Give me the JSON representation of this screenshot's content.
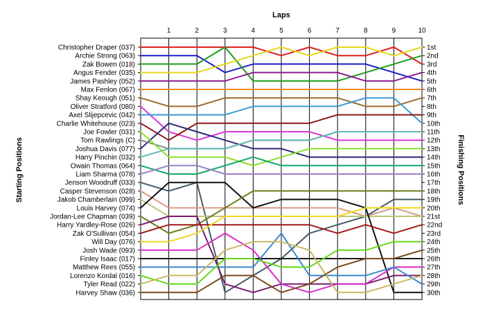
{
  "chart_data": {
    "type": "line",
    "title": "",
    "xlabel": "Laps",
    "ylabel_left": "Starting Positions",
    "ylabel_right": "Finishing Positions",
    "x": [
      0,
      1,
      2,
      3,
      4,
      5,
      6,
      7,
      8,
      9,
      10
    ],
    "x_tick_labels": [
      "1",
      "2",
      "3",
      "4",
      "5",
      "6",
      "7",
      "8",
      "9",
      "10"
    ],
    "ylim": [
      1,
      30
    ],
    "y_inverted": true,
    "grid": {
      "vertical": true,
      "horizontal": false
    },
    "finishing_position_labels": [
      "1st",
      "2nd",
      "3rd",
      "4th",
      "5th",
      "6th",
      "7th",
      "8th",
      "9th",
      "10th",
      "11th",
      "12th",
      "13th",
      "14th",
      "15th",
      "16th",
      "17th",
      "18th",
      "19th",
      "20th",
      "21st",
      "22nd",
      "23rd",
      "24th",
      "25th",
      "26th",
      "27th",
      "28th",
      "29th",
      "30th"
    ],
    "series": [
      {
        "name": "Christopher Draper (037)",
        "color": "#dd1f1f",
        "positions": [
          1,
          1,
          1,
          1,
          1,
          2,
          1,
          2,
          2,
          1,
          3
        ]
      },
      {
        "name": "Archie Strong (063)",
        "color": "#1c1ccc",
        "positions": [
          2,
          2,
          2,
          4,
          3,
          3,
          3,
          3,
          3,
          4,
          5
        ]
      },
      {
        "name": "Zak Bowen (018)",
        "color": "#1f9b1f",
        "positions": [
          3,
          3,
          3,
          1,
          5,
          5,
          5,
          5,
          4,
          3,
          2
        ]
      },
      {
        "name": "Angus Fender (035)",
        "color": "#e8d81a",
        "positions": [
          4,
          4,
          4,
          3,
          2,
          1,
          2,
          1,
          1,
          2,
          1
        ]
      },
      {
        "name": "James Pashley (052)",
        "color": "#8e1a8e",
        "positions": [
          5,
          5,
          5,
          5,
          4,
          4,
          4,
          4,
          5,
          5,
          4
        ]
      },
      {
        "name": "Max Fenlon (067)",
        "color": "#f08a1a",
        "positions": [
          6,
          6,
          6,
          6,
          6,
          6,
          6,
          6,
          6,
          6,
          6
        ]
      },
      {
        "name": "Shay Keough (051)",
        "color": "#9c6a2a",
        "positions": [
          7,
          8,
          8,
          7,
          7,
          7,
          7,
          7,
          8,
          8,
          7
        ]
      },
      {
        "name": "Oliver Stratford (080)",
        "color": "#d838d8",
        "positions": [
          8,
          11,
          12,
          11,
          11,
          11,
          11,
          12,
          12,
          12,
          12
        ]
      },
      {
        "name": "Axel Slijepcevic (042)",
        "color": "#3a9bd8",
        "positions": [
          9,
          9,
          9,
          9,
          8,
          8,
          8,
          8,
          7,
          7,
          10
        ]
      },
      {
        "name": "Charlie Whitehouse (023)",
        "color": "#8b1515",
        "positions": [
          10,
          12,
          10,
          10,
          10,
          10,
          10,
          9,
          9,
          9,
          9
        ]
      },
      {
        "name": "Joshua Davis (077)",
        "color": "#2a2a78",
        "positions": [
          13,
          10,
          11,
          12,
          13,
          13,
          14,
          14,
          14,
          14,
          14
        ]
      },
      {
        "name": "Tom Rawlings (C)",
        "color": "#888888",
        "positions": [
          12,
          13,
          13,
          13,
          12,
          12,
          12,
          11,
          11,
          11,
          11
        ]
      },
      {
        "name": "Harry Pinchin (032)",
        "color": "#5cbcb0",
        "positions": [
          14,
          13,
          13,
          13,
          12,
          12,
          12,
          11,
          11,
          11,
          11
        ]
      },
      {
        "name": "Joe Fowler (031)",
        "color": "#88e028",
        "positions": [
          11,
          14,
          14,
          14,
          15,
          14,
          13,
          13,
          13,
          13,
          13
        ]
      },
      {
        "name": "Owain Thomas (064)",
        "color": "#12a868",
        "positions": [
          15,
          16,
          16,
          15,
          14,
          15,
          15,
          15,
          15,
          15,
          15
        ]
      },
      {
        "name": "Liam Sharma (078)",
        "color": "#9a80c8",
        "positions": [
          16,
          15,
          15,
          16,
          16,
          16,
          16,
          16,
          16,
          16,
          16
        ]
      },
      {
        "name": "Jenson Woodruff (033)",
        "color": "#445a66",
        "positions": [
          17,
          18,
          17,
          30,
          28,
          26,
          23,
          22,
          21,
          19,
          19
        ]
      },
      {
        "name": "Casper Stevenson (028)",
        "color": "#d89a80",
        "positions": [
          18,
          20,
          20,
          20,
          20,
          20,
          20,
          20,
          21,
          20,
          21
        ]
      },
      {
        "name": "Jakob Chamberlain (099)",
        "color": "#b8c878",
        "positions": [
          19,
          21,
          21,
          21,
          21,
          21,
          21,
          21,
          21,
          21,
          21
        ]
      },
      {
        "name": "Louis Harvey (074)",
        "color": "#111111",
        "positions": [
          20,
          17,
          17,
          17,
          20,
          19,
          19,
          19,
          20,
          30,
          30
        ]
      },
      {
        "name": "Jordan-Lee Chapman (039)",
        "color": "#6e7a18",
        "positions": [
          21,
          23,
          22,
          20,
          18,
          18,
          18,
          18,
          18,
          18,
          18
        ]
      },
      {
        "name": "Harry Yardley-Rose (026)",
        "color": "#7a1a6e",
        "positions": [
          22,
          21,
          21,
          29,
          30,
          29,
          29,
          29,
          29,
          28,
          28
        ]
      },
      {
        "name": "Zak O'Sullivan (054)",
        "color": "#a01818",
        "positions": [
          23,
          22,
          22,
          22,
          22,
          22,
          22,
          23,
          22,
          23,
          22
        ]
      },
      {
        "name": "Will Day (076)",
        "color": "#f0d820",
        "positions": [
          24,
          24,
          23,
          21,
          21,
          21,
          21,
          21,
          20,
          20,
          20
        ]
      },
      {
        "name": "Josh Wade (093)",
        "color": "#d82cc8",
        "positions": [
          25,
          25,
          25,
          23,
          25,
          29,
          30,
          29,
          29,
          27,
          27
        ]
      },
      {
        "name": "Finley Isaac (017)",
        "color": "#1a1a1a",
        "positions": [
          26,
          26,
          26,
          26,
          26,
          26,
          26,
          26,
          26,
          26,
          26
        ]
      },
      {
        "name": "Matthew Rees (055)",
        "color": "#3a88d0",
        "positions": [
          27,
          27,
          27,
          27,
          27,
          23,
          28,
          28,
          28,
          27,
          29
        ]
      },
      {
        "name": "Lorenzo Kordal (016)",
        "color": "#60d818",
        "positions": [
          28,
          29,
          29,
          26,
          26,
          27,
          27,
          25,
          25,
          24,
          24
        ]
      },
      {
        "name": "Tyler Read (022)",
        "color": "#c8b860",
        "positions": [
          29,
          28,
          28,
          25,
          24,
          24,
          25,
          30,
          30,
          29,
          28
        ]
      },
      {
        "name": "Harvey Shaw (036)",
        "color": "#7a4a1a",
        "positions": [
          30,
          30,
          30,
          28,
          28,
          30,
          29,
          27,
          26,
          26,
          25
        ]
      }
    ]
  }
}
